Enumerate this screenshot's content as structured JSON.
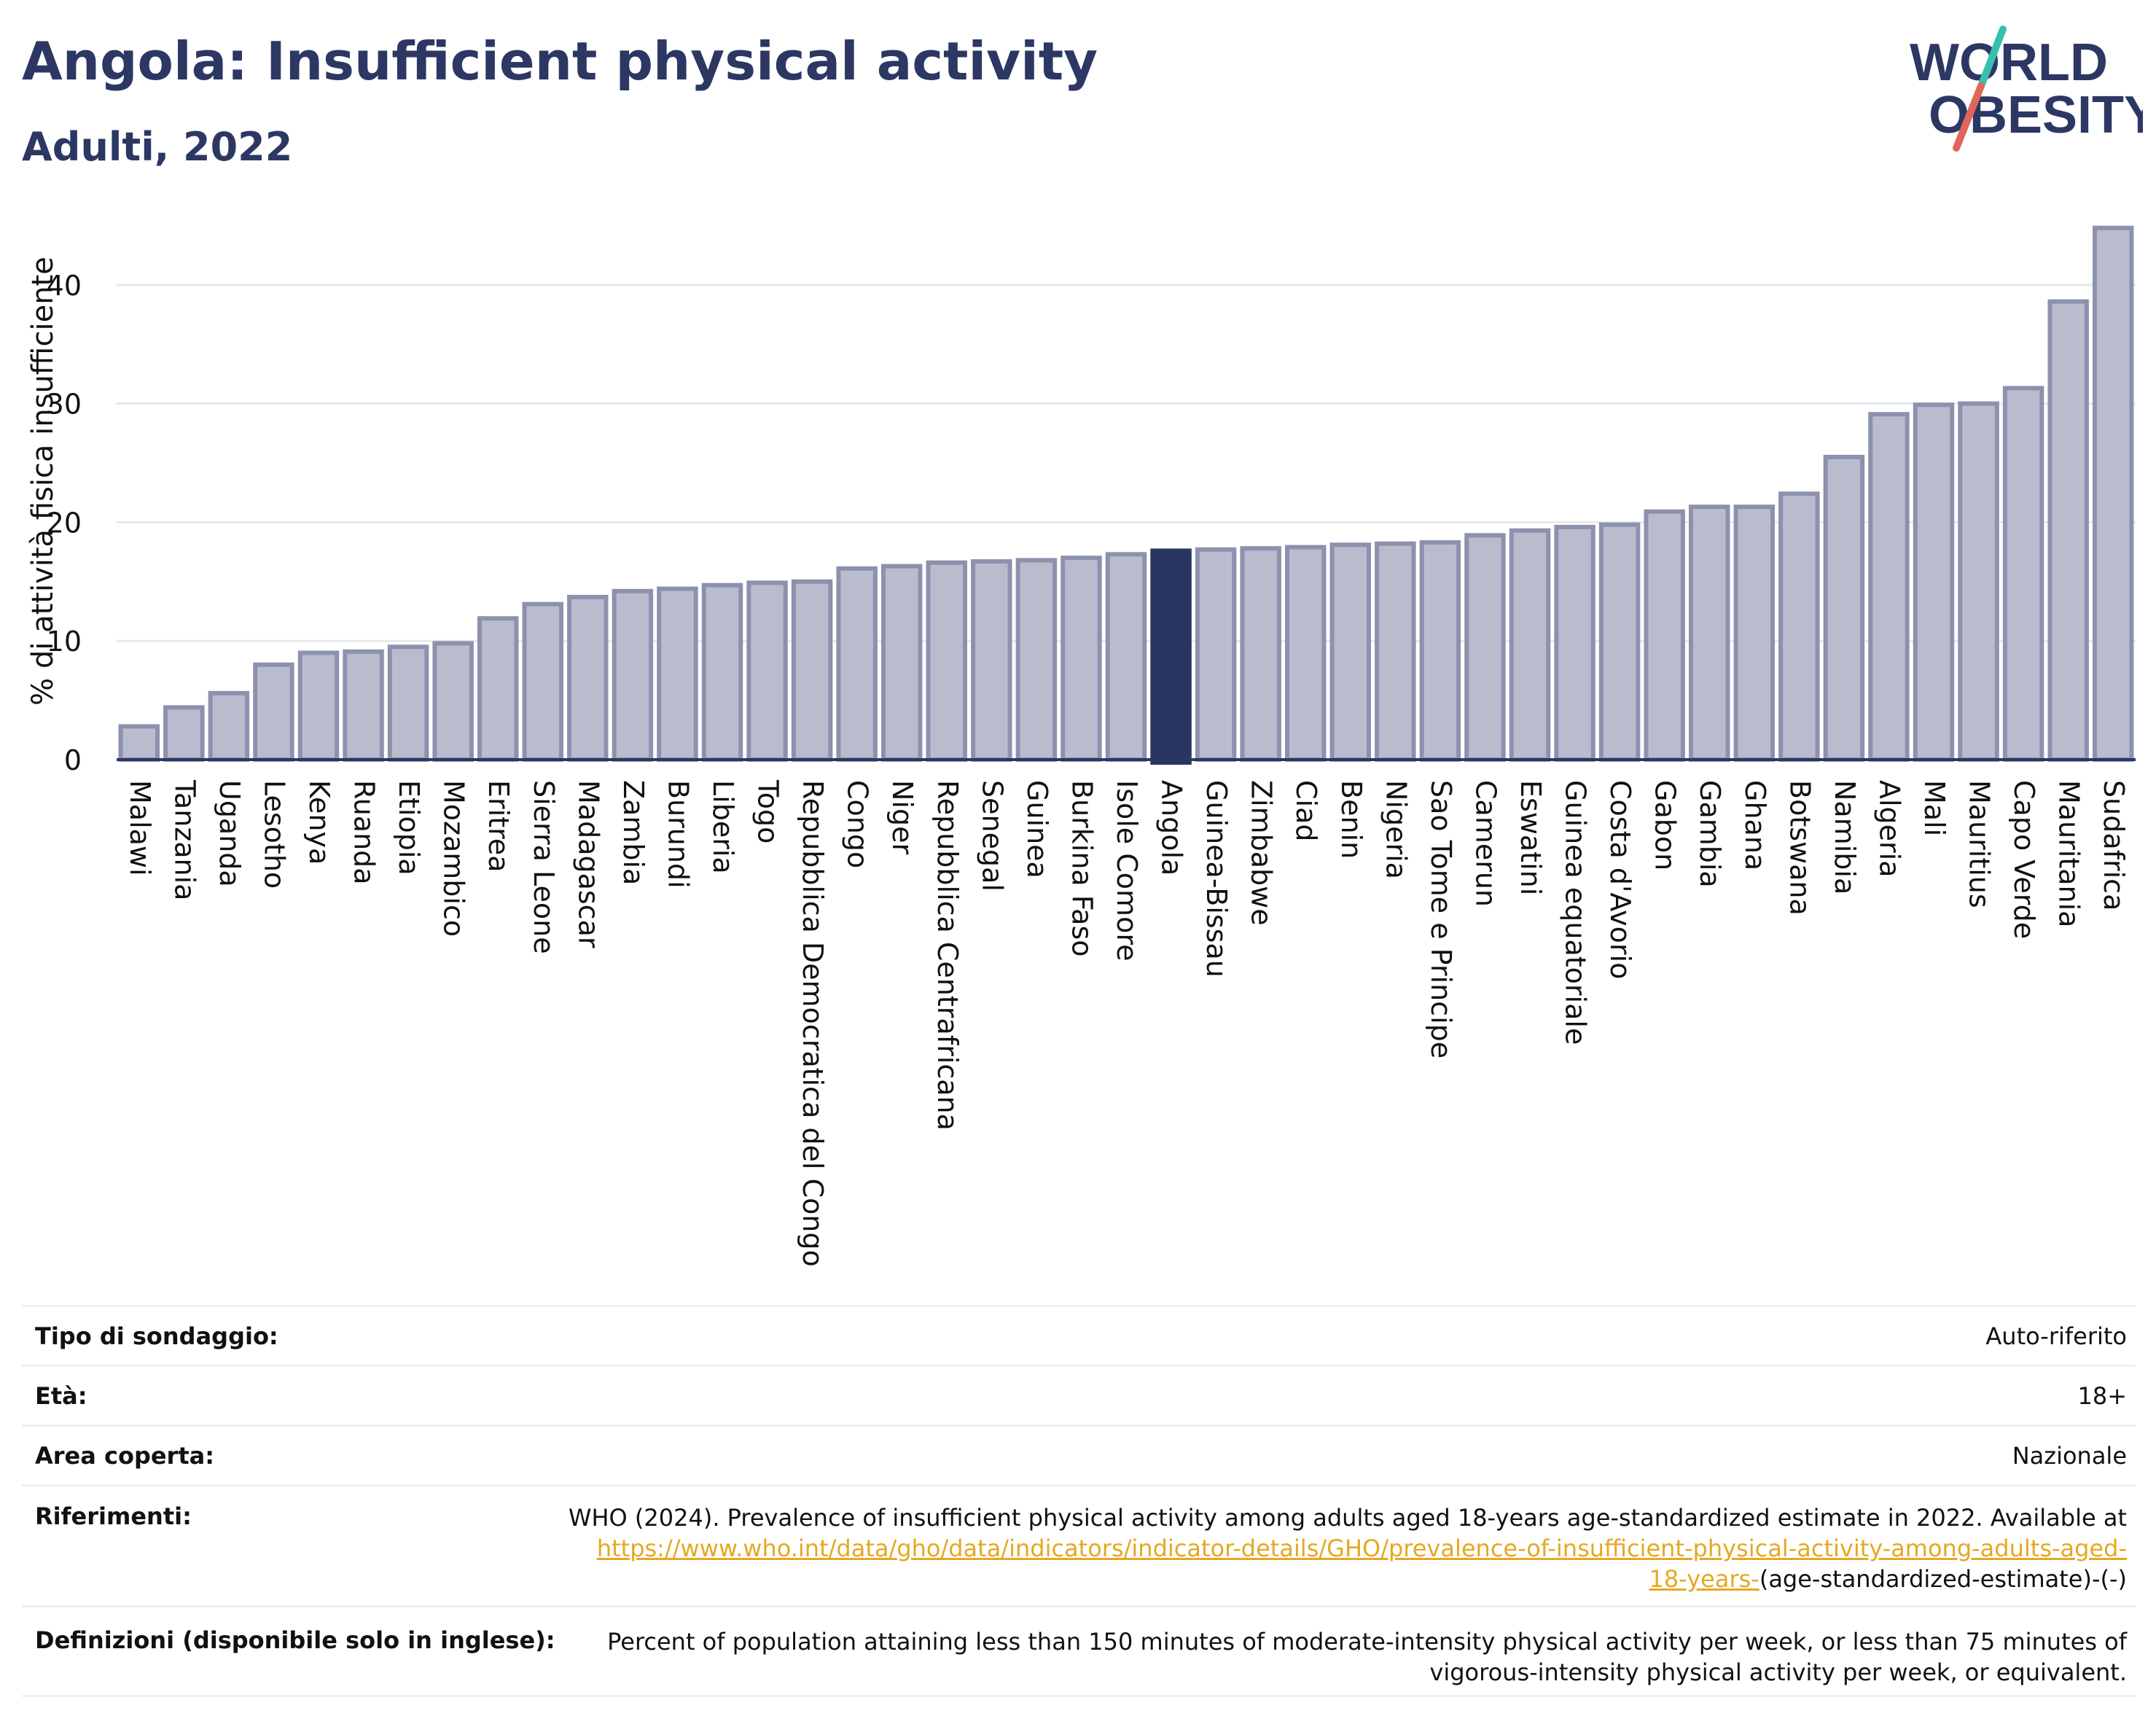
{
  "header": {
    "title": "Angola: Insufficient physical activity",
    "subtitle": "Adulti, 2022"
  },
  "logo": {
    "line1": "WORLD",
    "line2": "OBESITY",
    "colors": {
      "text": "#2d3763",
      "slash_top": "#39bfae",
      "slash_bottom": "#e0665a"
    }
  },
  "chart_data": {
    "type": "bar",
    "ylabel": "% di attività fisica insufficiente",
    "ylim": [
      0,
      45
    ],
    "yticks": [
      0,
      10,
      20,
      30,
      40
    ],
    "grid": true,
    "highlight": "Angola",
    "colors": {
      "bar": "#b9bccd",
      "bar_edge": "#8c91ad",
      "highlight": "#2b3561"
    },
    "categories": [
      "Malawi",
      "Tanzania",
      "Uganda",
      "Lesotho",
      "Kenya",
      "Ruanda",
      "Etiopia",
      "Mozambico",
      "Eritrea",
      "Sierra Leone",
      "Madagascar",
      "Zambia",
      "Burundi",
      "Liberia",
      "Togo",
      "Repubblica Democratica del Congo",
      "Congo",
      "Niger",
      "Repubblica Centrafricana",
      "Senegal",
      "Guinea",
      "Burkina Faso",
      "Isole Comore",
      "Angola",
      "Guinea-Bissau",
      "Zimbabwe",
      "Ciad",
      "Benin",
      "Nigeria",
      "Sao Tome e Principe",
      "Camerun",
      "Eswatini",
      "Guinea equatoriale",
      "Costa d'Avorio",
      "Gabon",
      "Gambia",
      "Ghana",
      "Botswana",
      "Namibia",
      "Algeria",
      "Mali",
      "Mauritius",
      "Capo Verde",
      "Mauritania",
      "Sudafrica"
    ],
    "values": [
      2.8,
      4.4,
      5.6,
      8.0,
      9.0,
      9.1,
      9.5,
      9.8,
      11.9,
      13.1,
      13.7,
      14.2,
      14.4,
      14.7,
      14.9,
      15.0,
      16.1,
      16.3,
      16.6,
      16.7,
      16.8,
      17.0,
      17.3,
      17.6,
      17.7,
      17.8,
      17.9,
      18.1,
      18.2,
      18.3,
      18.9,
      19.3,
      19.6,
      19.8,
      20.9,
      21.3,
      21.3,
      22.4,
      25.5,
      29.1,
      29.9,
      30.0,
      31.3,
      38.6,
      44.8
    ]
  },
  "info": {
    "survey": {
      "label": "Tipo di sondaggio:",
      "value": "Auto-riferito"
    },
    "age": {
      "label": "Età:",
      "value": "18+"
    },
    "area": {
      "label": "Area coperta:",
      "value": "Nazionale"
    },
    "refs": {
      "label": "Riferimenti:",
      "text": "WHO (2024). Prevalence of insufficient physical activity among adults aged 18-years age-standardized estimate in 2022. Available at",
      "link1": "https://www.who.int/data/gho/data/indicators/indicator-details/GHO/prevalence-of-insufficient-physical-activity-among-adults-aged-",
      "link2": "18-years-",
      "tail": "(age-standardized-estimate)-(-)"
    },
    "defs": {
      "label": "Definizioni (disponibile solo in inglese):",
      "line1": "Percent of population attaining less than 150 minutes of moderate-intensity physical activity per week, or less than 75 minutes of",
      "line2": "vigorous-intensity physical activity per week, or equivalent."
    }
  }
}
